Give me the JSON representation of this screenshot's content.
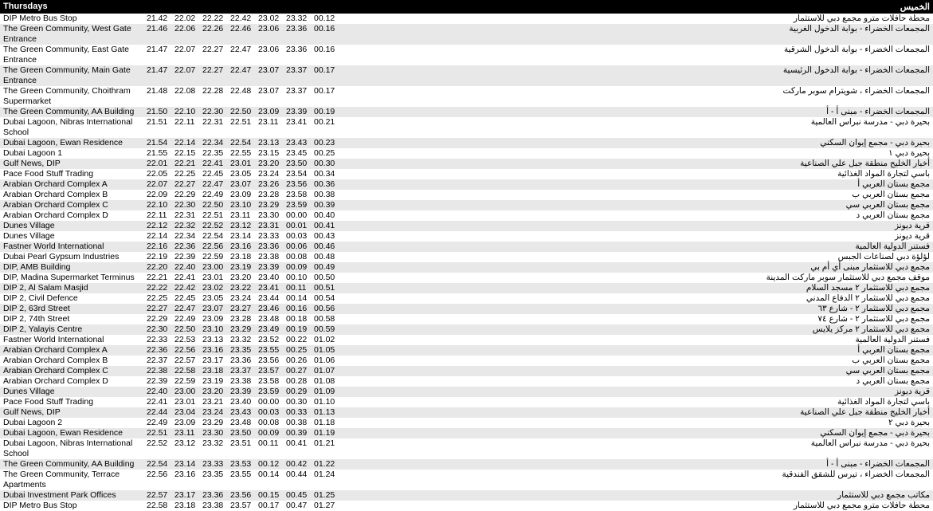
{
  "header": {
    "left": "Thursdays",
    "right": "الخميس"
  },
  "time_col_width": 35,
  "stops": [
    {
      "en": "DIP Metro Bus Stop",
      "ar": "محطة حافلات مترو مجمع دبي للاستثمار",
      "times": [
        "21.42",
        "22.02",
        "22.22",
        "22.42",
        "23.02",
        "23.32",
        "00.12"
      ],
      "alt": false
    },
    {
      "en": "The Green Community, West Gate Entrance",
      "ar": "المجمعات الخضراء - بوابة الدخول الغربية",
      "times": [
        "21.46",
        "22.06",
        "22.26",
        "22.46",
        "23.06",
        "23.36",
        "00.16"
      ],
      "alt": true
    },
    {
      "en": "The Green Community, East Gate Entrance",
      "ar": "المجمعات الخضراء - بوابة الدخول الشرقية",
      "times": [
        "21.47",
        "22.07",
        "22.27",
        "22.47",
        "23.06",
        "23.36",
        "00.16"
      ],
      "alt": false
    },
    {
      "en": "The Green Community, Main Gate Entrance",
      "ar": "المجمعات الخضراء - بوابة الدخول الرئيسية",
      "times": [
        "21.47",
        "22.07",
        "22.27",
        "22.47",
        "23.07",
        "23.37",
        "00.17"
      ],
      "alt": true
    },
    {
      "en": "The Green Community, Choithram Supermarket",
      "ar": "المجمعات الخضراء ، شويترام سوبر ماركت",
      "times": [
        "21.48",
        "22.08",
        "22.28",
        "22.48",
        "23.07",
        "23.37",
        "00.17"
      ],
      "alt": false
    },
    {
      "en": "The Green Community, AA Building",
      "ar": "المجمعات الخضراء - مبنى أ - أ",
      "times": [
        "21.50",
        "22.10",
        "22.30",
        "22.50",
        "23.09",
        "23.39",
        "00.19"
      ],
      "alt": true
    },
    {
      "en": "Dubai Lagoon, Nibras International School",
      "ar": "بحيرة دبي - مدرسة نبراس العالمية",
      "times": [
        "21.51",
        "22.11",
        "22.31",
        "22.51",
        "23.11",
        "23.41",
        "00.21"
      ],
      "alt": false
    },
    {
      "en": "Dubai Lagoon, Ewan Residence",
      "ar": "بحيرة دبي - مجمع إيوان السكني",
      "times": [
        "21.54",
        "22.14",
        "22.34",
        "22.54",
        "23.13",
        "23.43",
        "00.23"
      ],
      "alt": true
    },
    {
      "en": "Dubai Lagoon 1",
      "ar": "بحيرة دبي ١",
      "times": [
        "21.55",
        "22.15",
        "22.35",
        "22.55",
        "23.15",
        "23.45",
        "00.25"
      ],
      "alt": false
    },
    {
      "en": "Gulf News, DIP",
      "ar": "أخبار الخليج منطقة جبل علي الصناعية",
      "times": [
        "22.01",
        "22.21",
        "22.41",
        "23.01",
        "23.20",
        "23.50",
        "00.30"
      ],
      "alt": true
    },
    {
      "en": "Pace Food Stuff Trading",
      "ar": "باسي لتجارة المواد الغذائية",
      "times": [
        "22.05",
        "22.25",
        "22.45",
        "23.05",
        "23.24",
        "23.54",
        "00.34"
      ],
      "alt": false
    },
    {
      "en": "Arabian Orchard Complex A",
      "ar": "مجمع بستان العربي أ",
      "times": [
        "22.07",
        "22.27",
        "22.47",
        "23.07",
        "23.26",
        "23.56",
        "00.36"
      ],
      "alt": true
    },
    {
      "en": "Arabian Orchard Complex B",
      "ar": "مجمع بستان العربي ب",
      "times": [
        "22.09",
        "22.29",
        "22.49",
        "23.09",
        "23.28",
        "23.58",
        "00.38"
      ],
      "alt": false
    },
    {
      "en": "Arabian Orchard Complex C",
      "ar": "مجمع بستان العربي سي",
      "times": [
        "22.10",
        "22.30",
        "22.50",
        "23.10",
        "23.29",
        "23.59",
        "00.39"
      ],
      "alt": true
    },
    {
      "en": "Arabian Orchard Complex D",
      "ar": "مجمع بستان العربي د",
      "times": [
        "22.11",
        "22.31",
        "22.51",
        "23.11",
        "23.30",
        "00.00",
        "00.40"
      ],
      "alt": false
    },
    {
      "en": "Dunes Village",
      "ar": "قرية ديونز",
      "times": [
        "22.12",
        "22.32",
        "22.52",
        "23.12",
        "23.31",
        "00.01",
        "00.41"
      ],
      "alt": true
    },
    {
      "en": "Dunes Village",
      "ar": "قرية ديونز",
      "times": [
        "22.14",
        "22.34",
        "22.54",
        "23.14",
        "23.33",
        "00.03",
        "00.43"
      ],
      "alt": false
    },
    {
      "en": "Fastner World International",
      "ar": "فستنر الدولية العالمية",
      "times": [
        "22.16",
        "22.36",
        "22.56",
        "23.16",
        "23.36",
        "00.06",
        "00.46"
      ],
      "alt": true
    },
    {
      "en": "Dubai Pearl Gypsum Industries",
      "ar": "لؤلؤة دبي لصناعات الجبس",
      "times": [
        "22.19",
        "22.39",
        "22.59",
        "23.18",
        "23.38",
        "00.08",
        "00.48"
      ],
      "alt": false
    },
    {
      "en": "DIP, AMB Building",
      "ar": "مجمع دبي للاستثمار مبنى أي أم بي",
      "times": [
        "22.20",
        "22.40",
        "23.00",
        "23.19",
        "23.39",
        "00.09",
        "00.49"
      ],
      "alt": true
    },
    {
      "en": "DIP, Madina Supermarket Terminus",
      "ar": "موقف مجمع دبي للاستثمار سوبر ماركت المدينة",
      "times": [
        "22.21",
        "22.41",
        "23.01",
        "23.20",
        "23.40",
        "00.10",
        "00.50"
      ],
      "alt": false
    },
    {
      "en": "DIP 2, Al Salam Masjid",
      "ar": "مجمع دبي للاستثمار ٢ مسجد السلام",
      "times": [
        "22.22",
        "22.42",
        "23.02",
        "23.22",
        "23.41",
        "00.11",
        "00.51"
      ],
      "alt": true
    },
    {
      "en": "DIP 2, Civil Defence",
      "ar": "مجمع دبي للاستثمار ٢ الدفاع المدني",
      "times": [
        "22.25",
        "22.45",
        "23.05",
        "23.24",
        "23.44",
        "00.14",
        "00.54"
      ],
      "alt": false
    },
    {
      "en": "DIP 2, 63rd Street",
      "ar": "مجمع دبي للاستثمار ٢ - شارع ٦٣",
      "times": [
        "22.27",
        "22.47",
        "23.07",
        "23.27",
        "23.46",
        "00.16",
        "00.56"
      ],
      "alt": true
    },
    {
      "en": "DIP 2, 74th Street",
      "ar": "مجمع دبي للاستثمار ٢ - شارع ٧٤",
      "times": [
        "22.29",
        "22.49",
        "23.09",
        "23.28",
        "23.48",
        "00.18",
        "00.58"
      ],
      "alt": false
    },
    {
      "en": "DIP 2, Yalayis Centre",
      "ar": "مجمع دبي للاستثمار ٢ مركز يلايس",
      "times": [
        "22.30",
        "22.50",
        "23.10",
        "23.29",
        "23.49",
        "00.19",
        "00.59"
      ],
      "alt": true
    },
    {
      "en": "Fastner World International",
      "ar": "فستنر الدولية العالمية",
      "times": [
        "22.33",
        "22.53",
        "23.13",
        "23.32",
        "23.52",
        "00.22",
        "01.02"
      ],
      "alt": false
    },
    {
      "en": "Arabian Orchard Complex A",
      "ar": "مجمع بستان العربي أ",
      "times": [
        "22.36",
        "22.56",
        "23.16",
        "23.35",
        "23.55",
        "00.25",
        "01.05"
      ],
      "alt": true
    },
    {
      "en": "Arabian Orchard Complex B",
      "ar": "مجمع بستان العربي ب",
      "times": [
        "22.37",
        "22.57",
        "23.17",
        "23.36",
        "23.56",
        "00.26",
        "01.06"
      ],
      "alt": false
    },
    {
      "en": "Arabian Orchard Complex C",
      "ar": "مجمع بستان العربي سي",
      "times": [
        "22.38",
        "22.58",
        "23.18",
        "23.37",
        "23.57",
        "00.27",
        "01.07"
      ],
      "alt": true
    },
    {
      "en": "Arabian Orchard Complex D",
      "ar": "مجمع بستان العربي د",
      "times": [
        "22.39",
        "22.59",
        "23.19",
        "23.38",
        "23.58",
        "00.28",
        "01.08"
      ],
      "alt": false
    },
    {
      "en": "Dunes Village",
      "ar": "قرية ديونز",
      "times": [
        "22.40",
        "23.00",
        "23.20",
        "23.39",
        "23.59",
        "00.29",
        "01.09"
      ],
      "alt": true
    },
    {
      "en": "Pace Food Stuff Trading",
      "ar": "باسي لتجارة المواد الغذائية",
      "times": [
        "22.41",
        "23.01",
        "23.21",
        "23.40",
        "00.00",
        "00.30",
        "01.10"
      ],
      "alt": false
    },
    {
      "en": "Gulf News, DIP",
      "ar": "أخبار الخليج منطقة جبل علي الصناعية",
      "times": [
        "22.44",
        "23.04",
        "23.24",
        "23.43",
        "00.03",
        "00.33",
        "01.13"
      ],
      "alt": true
    },
    {
      "en": "Dubai Lagoon 2",
      "ar": "بحيرة دبي ٢",
      "times": [
        "22.49",
        "23.09",
        "23.29",
        "23.48",
        "00.08",
        "00.38",
        "01.18"
      ],
      "alt": false
    },
    {
      "en": "Dubai Lagoon, Ewan Residence",
      "ar": "بحيرة دبي - مجمع إيوان السكني",
      "times": [
        "22.51",
        "23.11",
        "23.30",
        "23.50",
        "00.09",
        "00.39",
        "01.19"
      ],
      "alt": true
    },
    {
      "en": "Dubai Lagoon, Nibras International School",
      "ar": "بحيرة دبي - مدرسة نبراس العالمية",
      "times": [
        "22.52",
        "23.12",
        "23.32",
        "23.51",
        "00.11",
        "00.41",
        "01.21"
      ],
      "alt": false
    },
    {
      "en": "The Green Community, AA Building",
      "ar": "المجمعات الخضراء - مبنى أ - أ",
      "times": [
        "22.54",
        "23.14",
        "23.33",
        "23.53",
        "00.12",
        "00.42",
        "01.22"
      ],
      "alt": true
    },
    {
      "en": "The Green Community, Terrace Apartments",
      "ar": "المجمعات الخضراء ، تيرس للشقق الفندقية",
      "times": [
        "22.56",
        "23.16",
        "23.35",
        "23.55",
        "00.14",
        "00.44",
        "01.24"
      ],
      "alt": false
    },
    {
      "en": "Dubai Investment Park Offices",
      "ar": "مكاتب مجمع دبي للاستثمار",
      "times": [
        "22.57",
        "23.17",
        "23.36",
        "23.56",
        "00.15",
        "00.45",
        "01.25"
      ],
      "alt": true
    },
    {
      "en": "DIP Metro Bus Stop",
      "ar": "محطة حافلات مترو مجمع دبي للاستثمار",
      "times": [
        "22.58",
        "23.18",
        "23.38",
        "23.57",
        "00.17",
        "00.47",
        "01.27"
      ],
      "alt": false
    }
  ]
}
